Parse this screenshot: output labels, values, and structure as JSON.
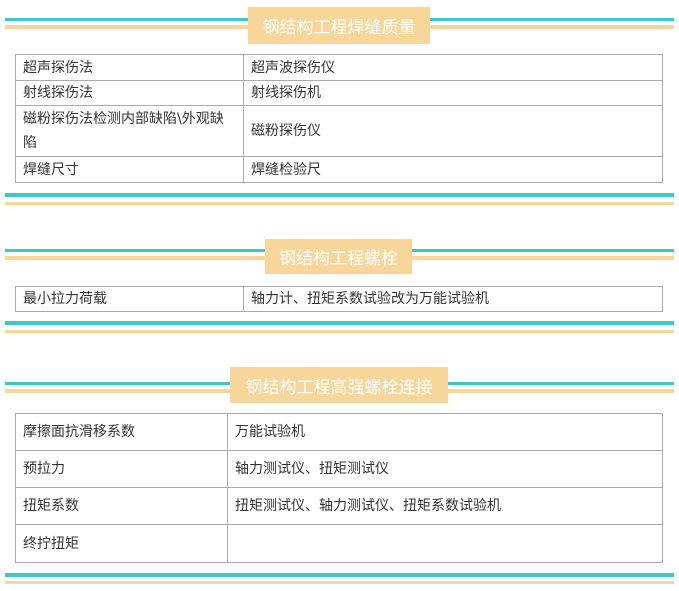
{
  "colors": {
    "teal": "#3cc8c4",
    "orange": "#f8d598"
  },
  "sections": [
    {
      "title": "钢结构工程焊缝质量",
      "rows": [
        [
          "超声探伤法",
          "超声波探伤仪"
        ],
        [
          "射线探伤法",
          "射线探伤机"
        ],
        [
          "磁粉探伤法检测内部缺陷\\外观缺陷",
          "磁粉探伤仪"
        ],
        [
          "焊缝尺寸",
          "焊缝检验尺"
        ]
      ]
    },
    {
      "title": "钢结构工程螺栓",
      "rows": [
        [
          "最小拉力荷载",
          "轴力计、扭矩系数试验改为万能试验机"
        ]
      ]
    },
    {
      "title": "钢结构工程高强螺栓连接",
      "rows": [
        [
          "摩擦面抗滑移系数",
          "万能试验机"
        ],
        [
          "预拉力",
          "轴力测试仪、扭矩测试仪"
        ],
        [
          "扭矩系数",
          "扭矩测试仪、轴力测试仪、扭矩系数试验机"
        ],
        [
          "终拧扭矩",
          ""
        ]
      ]
    }
  ]
}
